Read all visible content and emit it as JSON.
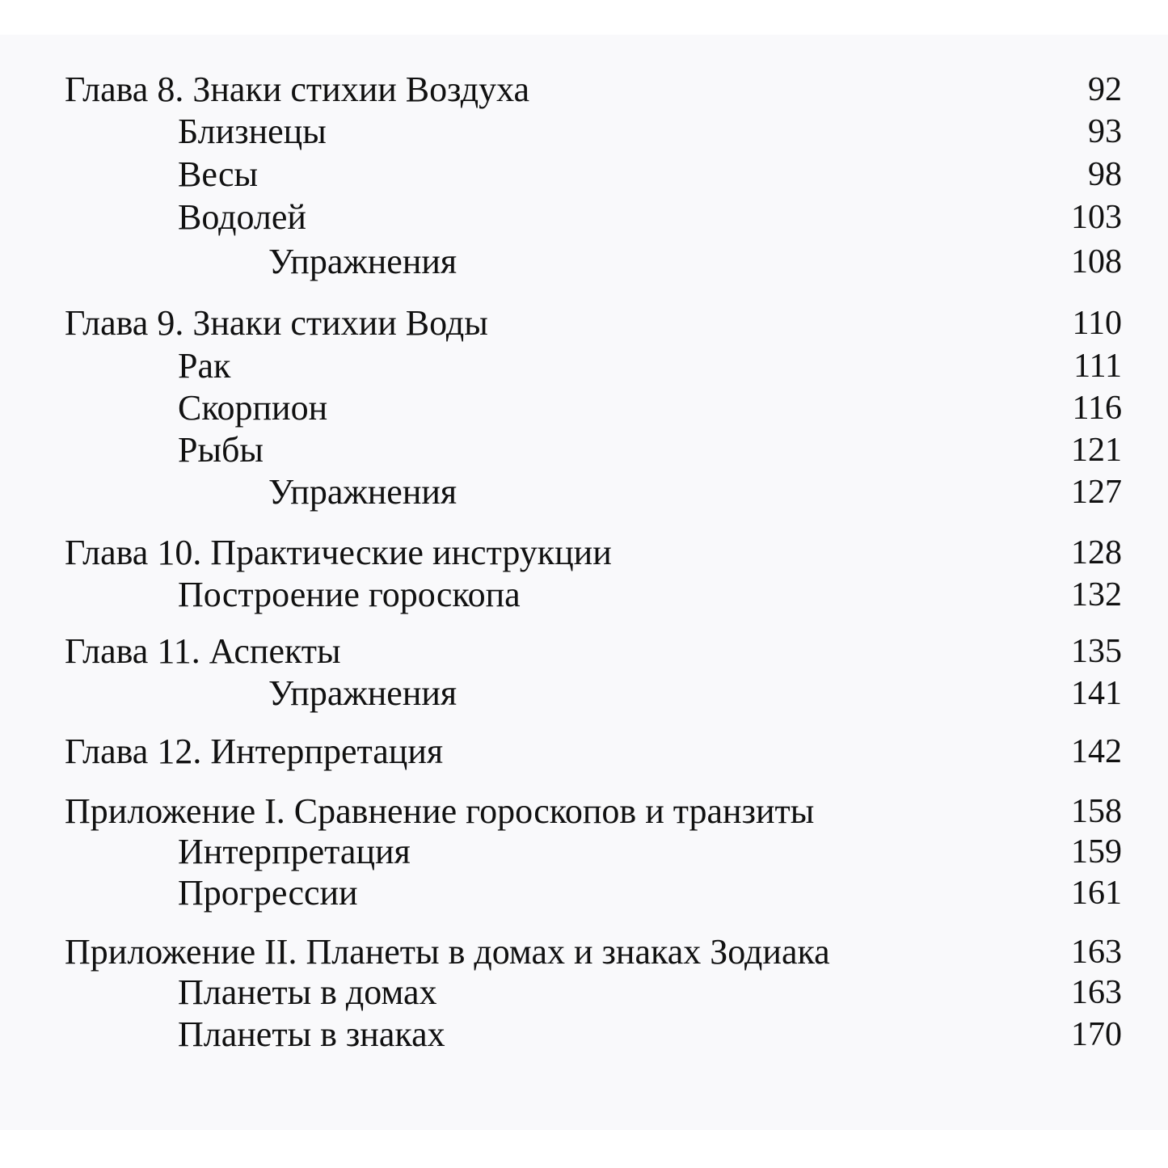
{
  "toc": [
    {
      "title": "Глава 8. Знаки стихии Воздуха",
      "page": "92",
      "level": 0
    },
    {
      "title": "Близнецы",
      "page": "93",
      "level": 1
    },
    {
      "title": "Весы",
      "page": "98",
      "level": 1
    },
    {
      "title": "Водолей",
      "page": "103",
      "level": 1
    },
    {
      "title": "Упражнения",
      "page": "108",
      "level": 2
    },
    {
      "title": "Глава 9. Знаки стихии Воды",
      "page": "110",
      "level": 0
    },
    {
      "title": "Рак",
      "page": "111",
      "level": 1
    },
    {
      "title": "Скорпион",
      "page": "116",
      "level": 1
    },
    {
      "title": "Рыбы",
      "page": "121",
      "level": 1
    },
    {
      "title": "Упражнения",
      "page": "127",
      "level": 2
    },
    {
      "title": "Глава 10. Практические инструкции",
      "page": "128",
      "level": 0
    },
    {
      "title": "Построение гороскопа",
      "page": "132",
      "level": 1
    },
    {
      "title": "Глава 11. Аспекты",
      "page": "135",
      "level": 0
    },
    {
      "title": "Упражнения",
      "page": "141",
      "level": 2
    },
    {
      "title": "Глава 12. Интерпретация",
      "page": "142",
      "level": 0
    },
    {
      "title": "Приложение I. Сравнение гороскопов и транзиты",
      "page": "158",
      "level": 0
    },
    {
      "title": "Интерпретация",
      "page": "159",
      "level": 1
    },
    {
      "title": "Прогрессии",
      "page": "161",
      "level": 1
    },
    {
      "title": "Приложение II. Планеты в домах и знаках Зодиака",
      "page": "163",
      "level": 0
    },
    {
      "title": "Планеты в домах",
      "page": "163",
      "level": 1
    },
    {
      "title": "Планеты в знаках",
      "page": "170",
      "level": 1
    }
  ]
}
